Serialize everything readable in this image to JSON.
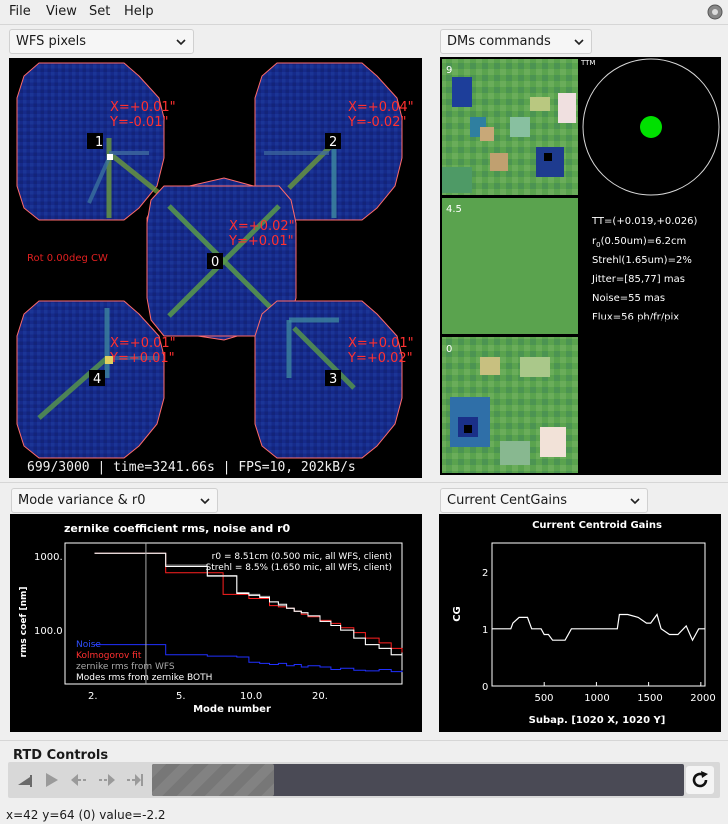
{
  "menu": {
    "file": "File",
    "view": "View",
    "set": "Set",
    "help": "Help"
  },
  "wfs": {
    "selector": "WFS pixels",
    "rot_label": "Rot 0.00deg CW",
    "footer": "699/3000 | time=3241.66s | FPS=10, 202kB/s",
    "subaps": [
      {
        "id": "1",
        "x": "X=+0.01\"",
        "y": "Y=-0.01\""
      },
      {
        "id": "2",
        "x": "X=+0.04\"",
        "y": "Y=-0.02\""
      },
      {
        "id": "0",
        "x": "X=+0.02\"",
        "y": "Y=+0.01\""
      },
      {
        "id": "4",
        "x": "X=+0.01\"",
        "y": "Y=+0.01\""
      },
      {
        "id": "3",
        "x": "X=+0.01\"",
        "y": "Y=+0.02\""
      }
    ]
  },
  "dms": {
    "selector": "DMs commands",
    "dm_labels": [
      "9",
      "4.5",
      "0"
    ],
    "ttm_label": "TTM",
    "stats": {
      "tt": "TT=(+0.019,+0.026)",
      "r0_prefix": "r",
      "r0_sub": "0",
      "r0_suffix": "(0.50um)=6.2cm",
      "strehl": "Strehl(1.65um)=2%",
      "jitter": "Jitter=[85,77] mas",
      "noise": "Noise=55 mas",
      "flux": "Flux=56 ph/fr/pix"
    },
    "colors": {
      "flat": "#5aa34e",
      "tt_dot": "#00e000"
    }
  },
  "modevar": {
    "selector": "Mode variance & r0",
    "title": "zernike coefficient rms, noise and r0",
    "ylabel": "rms coef [nm]",
    "xlabel": "Mode number",
    "ytick_labels": [
      "1000.",
      "100.0"
    ],
    "xtick_labels": [
      "2.",
      "5.",
      "10.0",
      "20."
    ],
    "info1": "r0 = 8.51cm (0.500 mic, all WFS, client)",
    "info2": "Strehl = 8.5% (1.650 mic, all WFS, client)",
    "legend": [
      "Noise",
      "Kolmogorov fit",
      "zernike rms from WFS",
      "Modes rms from zernike BOTH"
    ],
    "colors": {
      "noise": "#2030ff",
      "kolmo": "#ff2020",
      "wfs": "#aaaaaa",
      "both": "#ffffff"
    }
  },
  "gains": {
    "selector": "Current CentGains",
    "title": "Current Centroid Gains",
    "ylabel": "CG",
    "xlabel": "Subap. [1020 X, 1020 Y]",
    "ytick_labels": [
      "2",
      "1",
      "0"
    ],
    "xtick_labels": [
      "500",
      "1000",
      "1500",
      "2000"
    ]
  },
  "rtd": {
    "label": "RTD Controls"
  },
  "status": "x=42  y=64 (0) value=-2.2",
  "chart_data": [
    {
      "type": "line",
      "title": "zernike coefficient rms, noise and r0",
      "xlabel": "Mode number",
      "ylabel": "rms coef [nm]",
      "x_scale": "log",
      "y_scale": "log",
      "xlim": [
        1.5,
        40
      ],
      "ylim": [
        40,
        1500
      ],
      "grid": false,
      "legend_position": "bottom-left",
      "x": [
        2,
        3,
        4,
        5,
        6,
        7,
        8,
        9,
        10,
        11,
        12,
        13,
        14,
        15,
        16,
        18,
        20,
        22,
        25,
        28,
        32,
        36,
        40
      ],
      "series": [
        {
          "name": "Noise",
          "values": [
            110,
            110,
            85,
            85,
            82,
            82,
            80,
            70,
            68,
            66,
            68,
            64,
            66,
            62,
            64,
            62,
            58,
            60,
            57,
            56,
            58,
            55,
            57
          ]
        },
        {
          "name": "Kolmogorov fit",
          "values": [
            1150,
            1150,
            700,
            700,
            700,
            400,
            400,
            360,
            360,
            300,
            290,
            280,
            260,
            240,
            225,
            205,
            190,
            170,
            150,
            130,
            115,
            100,
            90
          ]
        },
        {
          "name": "zernike rms from WFS",
          "values": [
            1150,
            1150,
            850,
            850,
            650,
            650,
            420,
            400,
            380,
            330,
            300,
            280,
            260,
            250,
            230,
            200,
            180,
            160,
            130,
            110,
            100,
            85,
            80
          ]
        },
        {
          "name": "Modes rms from zernike BOTH",
          "values": [
            1150,
            1150,
            820,
            820,
            640,
            640,
            410,
            390,
            370,
            330,
            310,
            280,
            260,
            250,
            230,
            200,
            180,
            160,
            130,
            110,
            100,
            85,
            80
          ]
        }
      ]
    },
    {
      "type": "line",
      "title": "Current Centroid Gains",
      "xlabel": "Subap. [1020 X, 1020 Y]",
      "ylabel": "CG",
      "xlim": [
        0,
        2040
      ],
      "ylim": [
        0,
        2.5
      ],
      "grid": false,
      "x": [
        0,
        60,
        120,
        180,
        200,
        260,
        320,
        340,
        380,
        440,
        470,
        500,
        540,
        580,
        640,
        700,
        760,
        800,
        840,
        900,
        960,
        1020,
        1080,
        1140,
        1200,
        1220,
        1300,
        1400,
        1480,
        1520,
        1580,
        1620,
        1700,
        1780,
        1860,
        1920,
        1980,
        2040
      ],
      "series": [
        {
          "name": "CG",
          "values": [
            1.0,
            1.0,
            1.0,
            1.0,
            1.1,
            1.2,
            1.2,
            1.2,
            1.0,
            1.0,
            1.0,
            0.9,
            0.9,
            0.8,
            0.8,
            0.8,
            1.0,
            1.0,
            1.0,
            1.0,
            1.0,
            1.0,
            1.0,
            1.0,
            1.0,
            1.25,
            1.25,
            1.2,
            1.1,
            1.1,
            1.25,
            1.0,
            0.9,
            0.9,
            1.05,
            0.8,
            1.0,
            1.0
          ]
        }
      ]
    }
  ]
}
